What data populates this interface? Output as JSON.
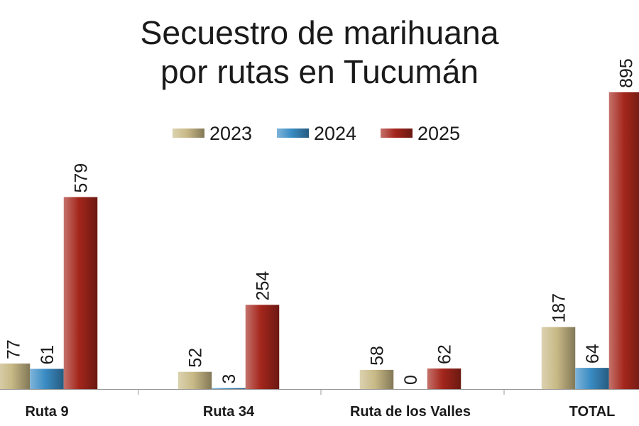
{
  "chart_data": {
    "type": "bar",
    "title": [
      "Secuestro de marihuana",
      "por rutas en Tucumán"
    ],
    "categories": [
      "Ruta 9",
      "Ruta 34",
      "Ruta de los Valles",
      "TOTAL"
    ],
    "series": [
      {
        "name": "2023",
        "color": "#c8b986",
        "values": [
          77,
          52,
          58,
          187
        ]
      },
      {
        "name": "2024",
        "color": "#3a8cc4",
        "values": [
          61,
          3,
          0,
          64
        ]
      },
      {
        "name": "2025",
        "color": "#a4261c",
        "values": [
          579,
          254,
          62,
          895
        ]
      }
    ],
    "legend": "top"
  }
}
